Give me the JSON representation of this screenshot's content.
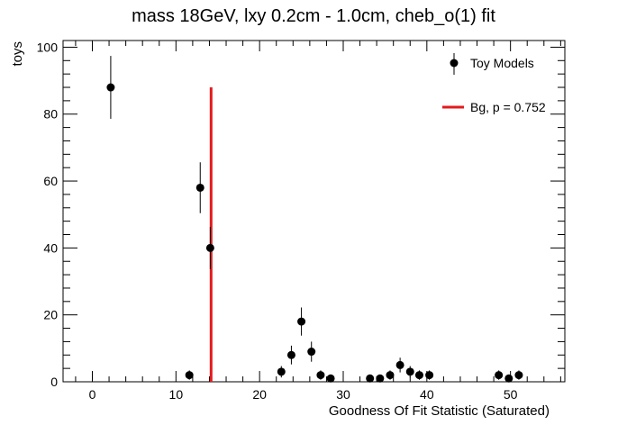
{
  "chart_data": {
    "type": "scatter",
    "title": "mass 18GeV, lxy 0.2cm - 1.0cm, cheb_o(1) fit",
    "xlabel": "Goodness Of Fit Statistic (Saturated)",
    "ylabel": "toys",
    "xlim": [
      -3.5,
      56.5
    ],
    "ylim": [
      0,
      102
    ],
    "xticks": [
      0,
      10,
      20,
      30,
      40,
      50
    ],
    "yticks": [
      0,
      20,
      40,
      60,
      80,
      100
    ],
    "grid": false,
    "legend_position": "top-right",
    "series": [
      {
        "name": "Toy Models",
        "kind": "points-with-errors",
        "color": "#000000",
        "points": [
          {
            "x": 2.2,
            "y": 88,
            "err": 9.4
          },
          {
            "x": 11.6,
            "y": 2,
            "err": 1.4
          },
          {
            "x": 12.9,
            "y": 58,
            "err": 7.6
          },
          {
            "x": 14.1,
            "y": 40,
            "err": 6.3
          },
          {
            "x": 22.6,
            "y": 3,
            "err": 1.7
          },
          {
            "x": 23.8,
            "y": 8,
            "err": 2.8
          },
          {
            "x": 25.0,
            "y": 18,
            "err": 4.2
          },
          {
            "x": 26.2,
            "y": 9,
            "err": 3.0
          },
          {
            "x": 27.3,
            "y": 2,
            "err": 1.4
          },
          {
            "x": 28.5,
            "y": 1,
            "err": 1.0
          },
          {
            "x": 33.2,
            "y": 1,
            "err": 1.0
          },
          {
            "x": 34.4,
            "y": 1,
            "err": 1.0
          },
          {
            "x": 35.6,
            "y": 2,
            "err": 1.4
          },
          {
            "x": 36.8,
            "y": 5,
            "err": 2.2
          },
          {
            "x": 38.0,
            "y": 3,
            "err": 1.7
          },
          {
            "x": 39.1,
            "y": 2,
            "err": 1.4
          },
          {
            "x": 40.3,
            "y": 2,
            "err": 1.4
          },
          {
            "x": 48.6,
            "y": 2,
            "err": 1.4
          },
          {
            "x": 49.8,
            "y": 1,
            "err": 1.0
          },
          {
            "x": 51.0,
            "y": 2,
            "err": 1.4
          }
        ]
      },
      {
        "name": "Bg, p = 0.752",
        "kind": "vertical-line",
        "color": "#e31a1c",
        "x": 14.2,
        "y_top": 88
      }
    ]
  }
}
